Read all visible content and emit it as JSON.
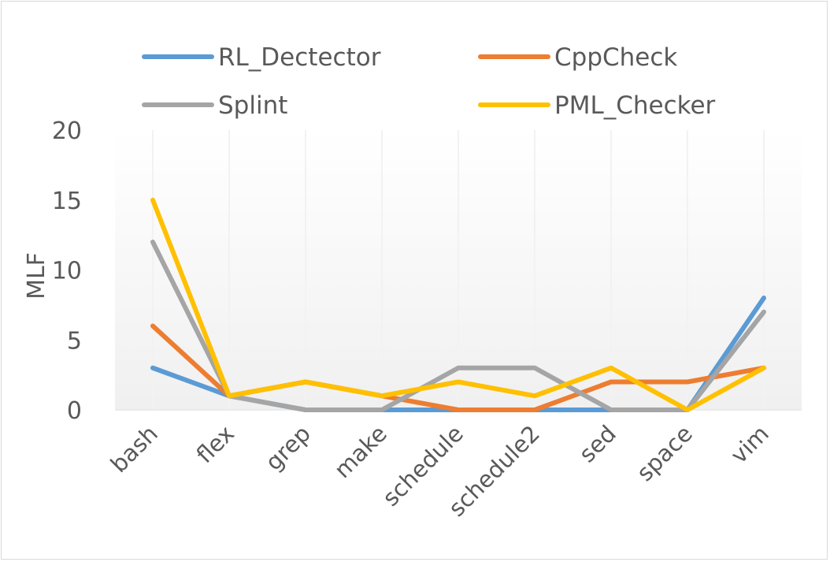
{
  "chart_data": {
    "type": "line",
    "title": "",
    "xlabel": "",
    "ylabel": "MLF",
    "ylim": [
      0,
      20
    ],
    "y_ticks": [
      0,
      5,
      10,
      15,
      20
    ],
    "grid": false,
    "legend_position": "top",
    "categories": [
      "bash",
      "flex",
      "grep",
      "make",
      "schedule",
      "schedule2",
      "sed",
      "space",
      "vim"
    ],
    "series": [
      {
        "name": "RL_Dectector",
        "color": "#5b9bd5",
        "values": [
          3,
          1,
          0,
          0,
          0,
          0,
          0,
          0,
          8
        ]
      },
      {
        "name": "CppCheck",
        "color": "#ed7d31",
        "values": [
          6,
          1,
          2,
          1,
          0,
          0,
          2,
          2,
          3
        ]
      },
      {
        "name": "Splint",
        "color": "#a5a5a5",
        "values": [
          12,
          1,
          0,
          0,
          3,
          3,
          0,
          0,
          7
        ]
      },
      {
        "name": "PML_Checker",
        "color": "#ffc000",
        "values": [
          15,
          1,
          2,
          1,
          2,
          1,
          3,
          0,
          3
        ]
      }
    ]
  }
}
